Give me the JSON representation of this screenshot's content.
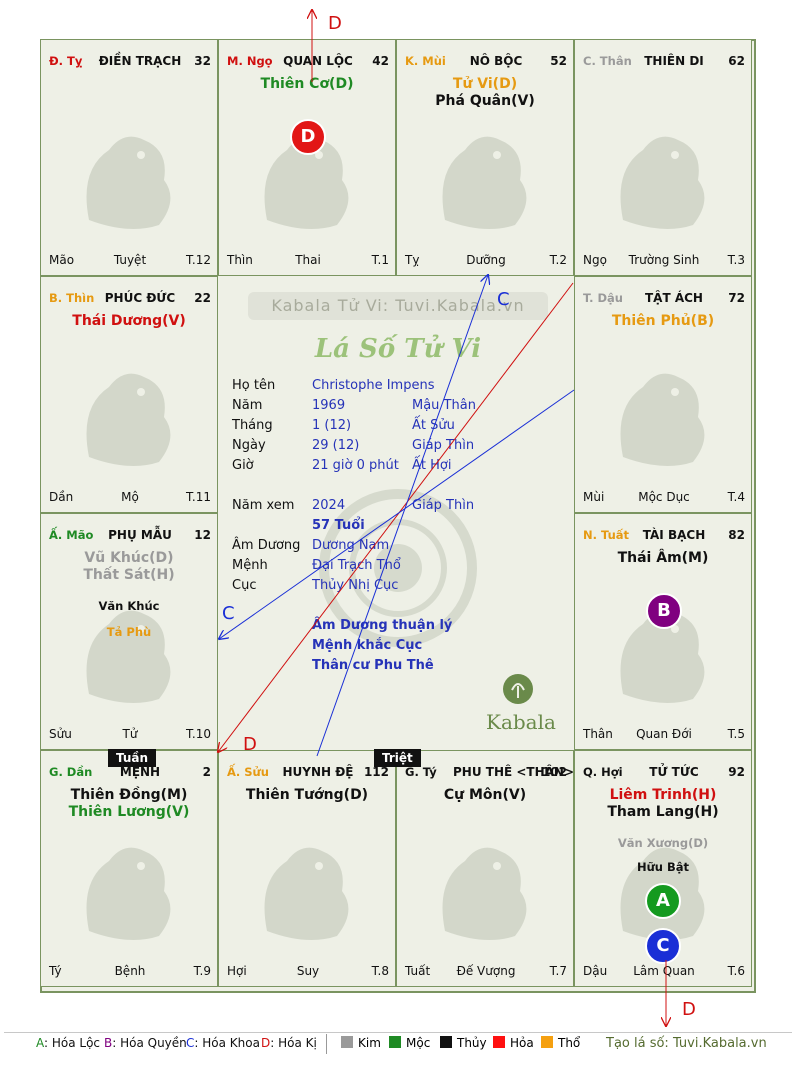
{
  "header_label": "D",
  "cells": [
    {
      "branch": "Đ. Tỵ",
      "branch_color": "#d01010",
      "palace": "ĐIỀN TRẠCH",
      "age": "32",
      "stars": [],
      "minor": [],
      "bl": "Mão",
      "bc": "Tuyệt",
      "br": "T.12"
    },
    {
      "branch": "M. Ngọ",
      "branch_color": "#d01010",
      "palace": "QUAN LỘC",
      "age": "42",
      "stars": [
        {
          "text": "Thiên Cơ(D)",
          "color": "#1f8a24"
        }
      ],
      "minor": [],
      "bl": "Thìn",
      "bc": "Thai",
      "br": "T.1"
    },
    {
      "branch": "K. Mùi",
      "branch_color": "#e69a12",
      "palace": "NÔ BỘC",
      "age": "52",
      "stars": [
        {
          "text": "Tử Vi(D)",
          "color": "#e69a12"
        },
        {
          "text": "Phá Quân(V)",
          "color": "#111111"
        }
      ],
      "minor": [],
      "bl": "Tỵ",
      "bc": "Dưỡng",
      "br": "T.2"
    },
    {
      "branch": "C. Thân",
      "branch_color": "#9a9a9a",
      "palace": "THIÊN DI",
      "age": "62",
      "stars": [],
      "minor": [],
      "bl": "Ngọ",
      "bc": "Trường Sinh",
      "br": "T.3"
    },
    {
      "branch": "B. Thìn",
      "branch_color": "#e69a12",
      "palace": "PHÚC ĐỨC",
      "age": "22",
      "stars": [
        {
          "text": "Thái Dương(V)",
          "color": "#d01010"
        }
      ],
      "minor": [],
      "bl": "Dần",
      "bc": "Mộ",
      "br": "T.11"
    },
    {
      "branch": "T. Dậu",
      "branch_color": "#9a9a9a",
      "palace": "TẬT ÁCH",
      "age": "72",
      "stars": [
        {
          "text": "Thiên Phủ(B)",
          "color": "#e69a12"
        }
      ],
      "minor": [],
      "bl": "Mùi",
      "bc": "Mộc Dục",
      "br": "T.4"
    },
    {
      "branch": "Ấ. Mão",
      "branch_color": "#1f8a24",
      "palace": "PHỤ MẪU",
      "age": "12",
      "stars": [
        {
          "text": "Vũ Khúc(D)",
          "color": "#9a9a9a"
        },
        {
          "text": "Thất Sát(H)",
          "color": "#9a9a9a"
        }
      ],
      "minor": [
        {
          "text": "Văn Khúc",
          "color": "#111111"
        },
        {
          "text": "Tả Phù",
          "color": "#e69a12"
        }
      ],
      "bl": "Sửu",
      "bc": "Tử",
      "br": "T.10"
    },
    {
      "branch": "N. Tuất",
      "branch_color": "#e69a12",
      "palace": "TÀI BẠCH",
      "age": "82",
      "stars": [
        {
          "text": "Thái Âm(M)",
          "color": "#111111"
        }
      ],
      "minor": [],
      "bl": "Thân",
      "bc": "Quan Đới",
      "br": "T.5"
    },
    {
      "branch": "G. Dần",
      "branch_color": "#1f8a24",
      "palace": "MỆNH",
      "age": "2",
      "stars": [
        {
          "text": "Thiên Đồng(M)",
          "color": "#111111"
        },
        {
          "text": "Thiên Lương(V)",
          "color": "#1f8a24"
        }
      ],
      "minor": [],
      "bl": "Tý",
      "bc": "Bệnh",
      "br": "T.9"
    },
    {
      "branch": "Ấ. Sửu",
      "branch_color": "#e69a12",
      "palace": "HUYNH ĐỆ",
      "age": "112",
      "stars": [
        {
          "text": "Thiên Tướng(D)",
          "color": "#111111"
        }
      ],
      "minor": [],
      "bl": "Hợi",
      "bc": "Suy",
      "br": "T.8"
    },
    {
      "branch": "G. Tý",
      "branch_color": "#111111",
      "palace": "PHU THÊ <THÂN>",
      "age": "102",
      "stars": [
        {
          "text": "Cự Môn(V)",
          "color": "#111111"
        }
      ],
      "minor": [],
      "bl": "Tuất",
      "bc": "Đế Vượng",
      "br": "T.7"
    },
    {
      "branch": "Q. Hợi",
      "branch_color": "#111111",
      "palace": "TỬ TỨC",
      "age": "92",
      "stars": [
        {
          "text": "Liêm Trinh(H)",
          "color": "#d01010"
        },
        {
          "text": "Tham Lang(H)",
          "color": "#111111"
        }
      ],
      "minor": [
        {
          "text": "Văn Xương(D)",
          "color": "#9a9a9a"
        },
        {
          "text": "Hữu Bật",
          "color": "#111111"
        }
      ],
      "bl": "Dậu",
      "bc": "Lâm Quan",
      "br": "T.6"
    }
  ],
  "badges": {
    "a": "A",
    "b": "B",
    "c": "C",
    "d": "D"
  },
  "tags": {
    "tuan": "Tuần",
    "triet": "Triệt"
  },
  "arrow_labels": {
    "c1": "C",
    "c2": "C",
    "d1": "D",
    "d2": "D"
  },
  "center": {
    "watermark": "Kabala Tử Vi: Tuvi.Kabala.vn",
    "title": "Lá Số Tử Vi",
    "rows": [
      {
        "label": "Họ tên",
        "v1": "Christophe Impens",
        "v2": ""
      },
      {
        "label": "Năm",
        "v1": "1969",
        "v2": "Mậu Thân"
      },
      {
        "label": "Tháng",
        "v1": "1  (12)",
        "v2": "Ất Sửu"
      },
      {
        "label": "Ngày",
        "v1": "29  (12)",
        "v2": "Giáp Thìn"
      },
      {
        "label": "Giờ",
        "v1": "21 giờ 0 phút",
        "v2": "Ất Hợi"
      }
    ],
    "namxem_label": "Năm xem",
    "namxem_year": "2024",
    "namxem_can": "Giáp Thìn",
    "tuoi": "57 Tuổi",
    "rows2": [
      {
        "label": "Âm Dương",
        "v1": "Dương Nam"
      },
      {
        "label": "Mệnh",
        "v1": "Đại Trạch Thổ"
      },
      {
        "label": "Cục",
        "v1": "Thủy Nhị Cục"
      }
    ],
    "notes": [
      "Âm Dương thuận lý",
      "Mệnh khắc Cục",
      "Thân cư Phu Thê"
    ],
    "logo_text": "Kabala"
  },
  "legend": {
    "items": [
      {
        "key": "A",
        "label": ": Hóa Lộc",
        "color": "#1f8a24"
      },
      {
        "key": "B",
        "label": ": Hóa Quyền",
        "color": "#800080"
      },
      {
        "key": "C",
        "label": ": Hóa Khoa",
        "color": "#1a2fd6"
      },
      {
        "key": "D",
        "label": ": Hóa Kị",
        "color": "#d01010"
      }
    ],
    "elements": [
      {
        "label": "Kim",
        "color": "#9a9a9a"
      },
      {
        "label": "Mộc",
        "color": "#1f8a24"
      },
      {
        "label": "Thủy",
        "color": "#111111"
      },
      {
        "label": "Hỏa",
        "color": "#ff1010"
      },
      {
        "label": "Thổ",
        "color": "#f5a010"
      }
    ],
    "site": "Tạo lá số: Tuvi.Kabala.vn"
  }
}
